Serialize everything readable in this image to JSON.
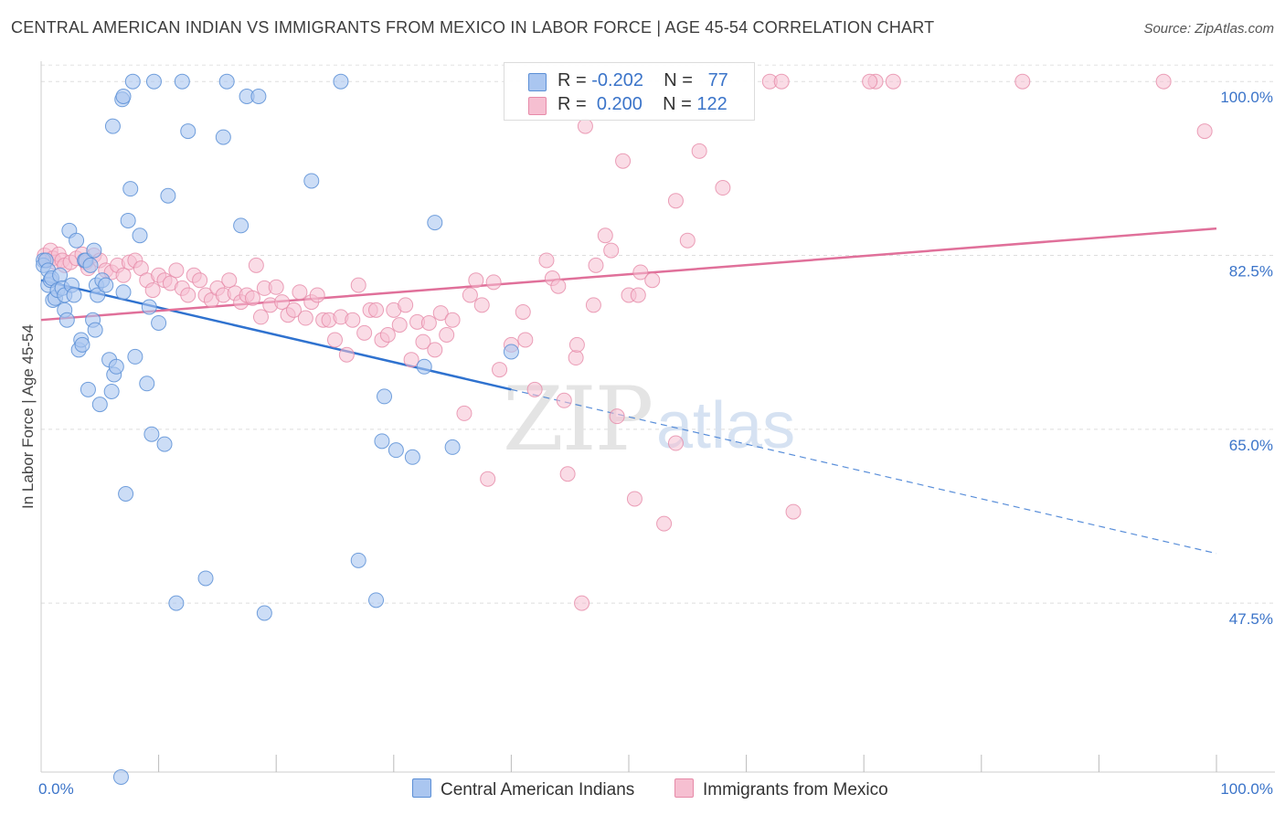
{
  "title": "CENTRAL AMERICAN INDIAN VS IMMIGRANTS FROM MEXICO IN LABOR FORCE | AGE 45-54 CORRELATION CHART",
  "source": "Source: ZipAtlas.com",
  "watermark": {
    "zip": "ZIP",
    "atlas": "atlas"
  },
  "legend": {
    "row1": {
      "r_label": "R =",
      "r_value": "-0.202",
      "n_label": "N =",
      "n_value": "77"
    },
    "row2": {
      "r_label": "R =",
      "r_value": "0.200",
      "n_label": "N =",
      "n_value": "122"
    }
  },
  "bottom_legend": {
    "series1": "Central American Indians",
    "series2": "Immigrants from Mexico"
  },
  "colors": {
    "blue_fill": "#aac6f0",
    "blue_stroke": "#5b8fd6",
    "blue_line": "#2f72cf",
    "pink_fill": "#f6bfd1",
    "pink_stroke": "#e68aa8",
    "pink_line": "#e0709a",
    "axis_text": "#3b74c9"
  },
  "chart_data": {
    "type": "scatter",
    "title": "CENTRAL AMERICAN INDIAN VS IMMIGRANTS FROM MEXICO IN LABOR FORCE | AGE 45-54 CORRELATION CHART",
    "xlabel": "",
    "ylabel": "In Labor Force | Age 45-54",
    "xlim": [
      0,
      1
    ],
    "ylim": [
      0.305,
      1.025
    ],
    "x_tick_labels": [
      "0.0%",
      "100.0%"
    ],
    "y_ticks": [
      0.475,
      0.65,
      0.825,
      1.0
    ],
    "y_tick_labels": [
      "47.5%",
      "65.0%",
      "82.5%",
      "100.0%"
    ],
    "grid": true,
    "legend_position": "top-center",
    "series": [
      {
        "name": "Central American Indians",
        "r": -0.202,
        "n": 77,
        "trend": {
          "x0": 0.0,
          "y0": 0.8,
          "x1": 0.4,
          "y1": 0.69,
          "dashed_to": {
            "x": 1.0,
            "y": 0.525
          }
        },
        "points": [
          [
            0.002,
            0.82
          ],
          [
            0.002,
            0.815
          ],
          [
            0.004,
            0.82
          ],
          [
            0.006,
            0.81
          ],
          [
            0.006,
            0.795
          ],
          [
            0.008,
            0.8
          ],
          [
            0.009,
            0.802
          ],
          [
            0.01,
            0.78
          ],
          [
            0.012,
            0.782
          ],
          [
            0.014,
            0.79
          ],
          [
            0.016,
            0.805
          ],
          [
            0.018,
            0.792
          ],
          [
            0.02,
            0.785
          ],
          [
            0.02,
            0.77
          ],
          [
            0.022,
            0.76
          ],
          [
            0.024,
            0.85
          ],
          [
            0.026,
            0.795
          ],
          [
            0.028,
            0.785
          ],
          [
            0.03,
            0.84
          ],
          [
            0.032,
            0.73
          ],
          [
            0.034,
            0.74
          ],
          [
            0.035,
            0.735
          ],
          [
            0.037,
            0.82
          ],
          [
            0.038,
            0.82
          ],
          [
            0.04,
            0.69
          ],
          [
            0.042,
            0.815
          ],
          [
            0.044,
            0.76
          ],
          [
            0.045,
            0.83
          ],
          [
            0.046,
            0.75
          ],
          [
            0.047,
            0.795
          ],
          [
            0.048,
            0.785
          ],
          [
            0.05,
            0.675
          ],
          [
            0.052,
            0.8
          ],
          [
            0.055,
            0.795
          ],
          [
            0.058,
            0.72
          ],
          [
            0.06,
            0.688
          ],
          [
            0.061,
            0.955
          ],
          [
            0.062,
            0.705
          ],
          [
            0.064,
            0.713
          ],
          [
            0.068,
            0.3
          ],
          [
            0.069,
            0.982
          ],
          [
            0.07,
            0.788
          ],
          [
            0.07,
            0.985
          ],
          [
            0.072,
            0.585
          ],
          [
            0.074,
            0.86
          ],
          [
            0.076,
            0.892
          ],
          [
            0.078,
            1.0
          ],
          [
            0.08,
            0.723
          ],
          [
            0.084,
            0.845
          ],
          [
            0.09,
            0.696
          ],
          [
            0.092,
            0.773
          ],
          [
            0.094,
            0.645
          ],
          [
            0.096,
            1.0
          ],
          [
            0.1,
            0.757
          ],
          [
            0.105,
            0.635
          ],
          [
            0.108,
            0.885
          ],
          [
            0.115,
            0.475
          ],
          [
            0.12,
            1.0
          ],
          [
            0.125,
            0.95
          ],
          [
            0.14,
            0.5
          ],
          [
            0.155,
            0.944
          ],
          [
            0.158,
            1.0
          ],
          [
            0.17,
            0.855
          ],
          [
            0.175,
            0.985
          ],
          [
            0.185,
            0.985
          ],
          [
            0.19,
            0.465
          ],
          [
            0.23,
            0.9
          ],
          [
            0.255,
            1.0
          ],
          [
            0.27,
            0.518
          ],
          [
            0.285,
            0.478
          ],
          [
            0.292,
            0.683
          ],
          [
            0.29,
            0.638
          ],
          [
            0.302,
            0.629
          ],
          [
            0.316,
            0.622
          ],
          [
            0.326,
            0.713
          ],
          [
            0.335,
            0.858
          ],
          [
            0.35,
            0.632
          ],
          [
            0.4,
            0.728
          ]
        ]
      },
      {
        "name": "Immigrants from Mexico",
        "r": 0.2,
        "n": 122,
        "trend": {
          "x0": 0.0,
          "y0": 0.76,
          "x1": 1.0,
          "y1": 0.852
        },
        "points": [
          [
            0.003,
            0.825
          ],
          [
            0.005,
            0.82
          ],
          [
            0.008,
            0.83
          ],
          [
            0.01,
            0.822
          ],
          [
            0.012,
            0.818
          ],
          [
            0.015,
            0.826
          ],
          [
            0.018,
            0.82
          ],
          [
            0.02,
            0.815
          ],
          [
            0.025,
            0.818
          ],
          [
            0.03,
            0.822
          ],
          [
            0.035,
            0.826
          ],
          [
            0.038,
            0.818
          ],
          [
            0.04,
            0.812
          ],
          [
            0.045,
            0.825
          ],
          [
            0.05,
            0.82
          ],
          [
            0.055,
            0.81
          ],
          [
            0.06,
            0.808
          ],
          [
            0.065,
            0.815
          ],
          [
            0.07,
            0.805
          ],
          [
            0.075,
            0.818
          ],
          [
            0.08,
            0.82
          ],
          [
            0.085,
            0.812
          ],
          [
            0.09,
            0.8
          ],
          [
            0.095,
            0.79
          ],
          [
            0.1,
            0.805
          ],
          [
            0.105,
            0.8
          ],
          [
            0.11,
            0.797
          ],
          [
            0.115,
            0.81
          ],
          [
            0.12,
            0.792
          ],
          [
            0.125,
            0.785
          ],
          [
            0.13,
            0.805
          ],
          [
            0.135,
            0.8
          ],
          [
            0.14,
            0.785
          ],
          [
            0.145,
            0.78
          ],
          [
            0.15,
            0.792
          ],
          [
            0.155,
            0.785
          ],
          [
            0.16,
            0.8
          ],
          [
            0.165,
            0.787
          ],
          [
            0.17,
            0.778
          ],
          [
            0.175,
            0.785
          ],
          [
            0.18,
            0.782
          ],
          [
            0.183,
            0.815
          ],
          [
            0.187,
            0.763
          ],
          [
            0.19,
            0.792
          ],
          [
            0.195,
            0.775
          ],
          [
            0.2,
            0.793
          ],
          [
            0.205,
            0.778
          ],
          [
            0.21,
            0.765
          ],
          [
            0.215,
            0.77
          ],
          [
            0.22,
            0.788
          ],
          [
            0.225,
            0.762
          ],
          [
            0.23,
            0.778
          ],
          [
            0.235,
            0.785
          ],
          [
            0.24,
            0.76
          ],
          [
            0.245,
            0.76
          ],
          [
            0.25,
            0.74
          ],
          [
            0.255,
            0.763
          ],
          [
            0.26,
            0.725
          ],
          [
            0.265,
            0.76
          ],
          [
            0.27,
            0.795
          ],
          [
            0.275,
            0.747
          ],
          [
            0.28,
            0.77
          ],
          [
            0.285,
            0.77
          ],
          [
            0.29,
            0.74
          ],
          [
            0.295,
            0.745
          ],
          [
            0.3,
            0.77
          ],
          [
            0.305,
            0.755
          ],
          [
            0.31,
            0.775
          ],
          [
            0.315,
            0.72
          ],
          [
            0.32,
            0.758
          ],
          [
            0.325,
            0.738
          ],
          [
            0.33,
            0.757
          ],
          [
            0.335,
            0.73
          ],
          [
            0.34,
            0.767
          ],
          [
            0.345,
            0.745
          ],
          [
            0.35,
            0.76
          ],
          [
            0.36,
            0.666
          ],
          [
            0.365,
            0.785
          ],
          [
            0.37,
            0.8
          ],
          [
            0.375,
            0.775
          ],
          [
            0.38,
            0.6
          ],
          [
            0.385,
            0.798
          ],
          [
            0.39,
            0.71
          ],
          [
            0.4,
            0.735
          ],
          [
            0.41,
            0.768
          ],
          [
            0.412,
            0.74
          ],
          [
            0.42,
            0.69
          ],
          [
            0.43,
            0.82
          ],
          [
            0.435,
            0.802
          ],
          [
            0.44,
            0.794
          ],
          [
            0.445,
            0.679
          ],
          [
            0.448,
            0.605
          ],
          [
            0.455,
            0.722
          ],
          [
            0.456,
            0.735
          ],
          [
            0.46,
            0.475
          ],
          [
            0.463,
            0.955
          ],
          [
            0.47,
            0.775
          ],
          [
            0.472,
            0.815
          ],
          [
            0.48,
            0.845
          ],
          [
            0.485,
            0.83
          ],
          [
            0.49,
            0.663
          ],
          [
            0.495,
            0.92
          ],
          [
            0.5,
            0.785
          ],
          [
            0.505,
            0.58
          ],
          [
            0.508,
            0.785
          ],
          [
            0.51,
            0.808
          ],
          [
            0.52,
            0.8
          ],
          [
            0.53,
            0.555
          ],
          [
            0.54,
            0.636
          ],
          [
            0.54,
            0.88
          ],
          [
            0.55,
            0.84
          ],
          [
            0.56,
            0.93
          ],
          [
            0.58,
            0.893
          ],
          [
            0.62,
            1.0
          ],
          [
            0.63,
            1.0
          ],
          [
            0.64,
            0.567
          ],
          [
            0.71,
            1.0
          ],
          [
            0.705,
            1.0
          ],
          [
            0.725,
            1.0
          ],
          [
            0.835,
            1.0
          ],
          [
            0.955,
            1.0
          ],
          [
            0.99,
            0.95
          ]
        ]
      }
    ]
  }
}
